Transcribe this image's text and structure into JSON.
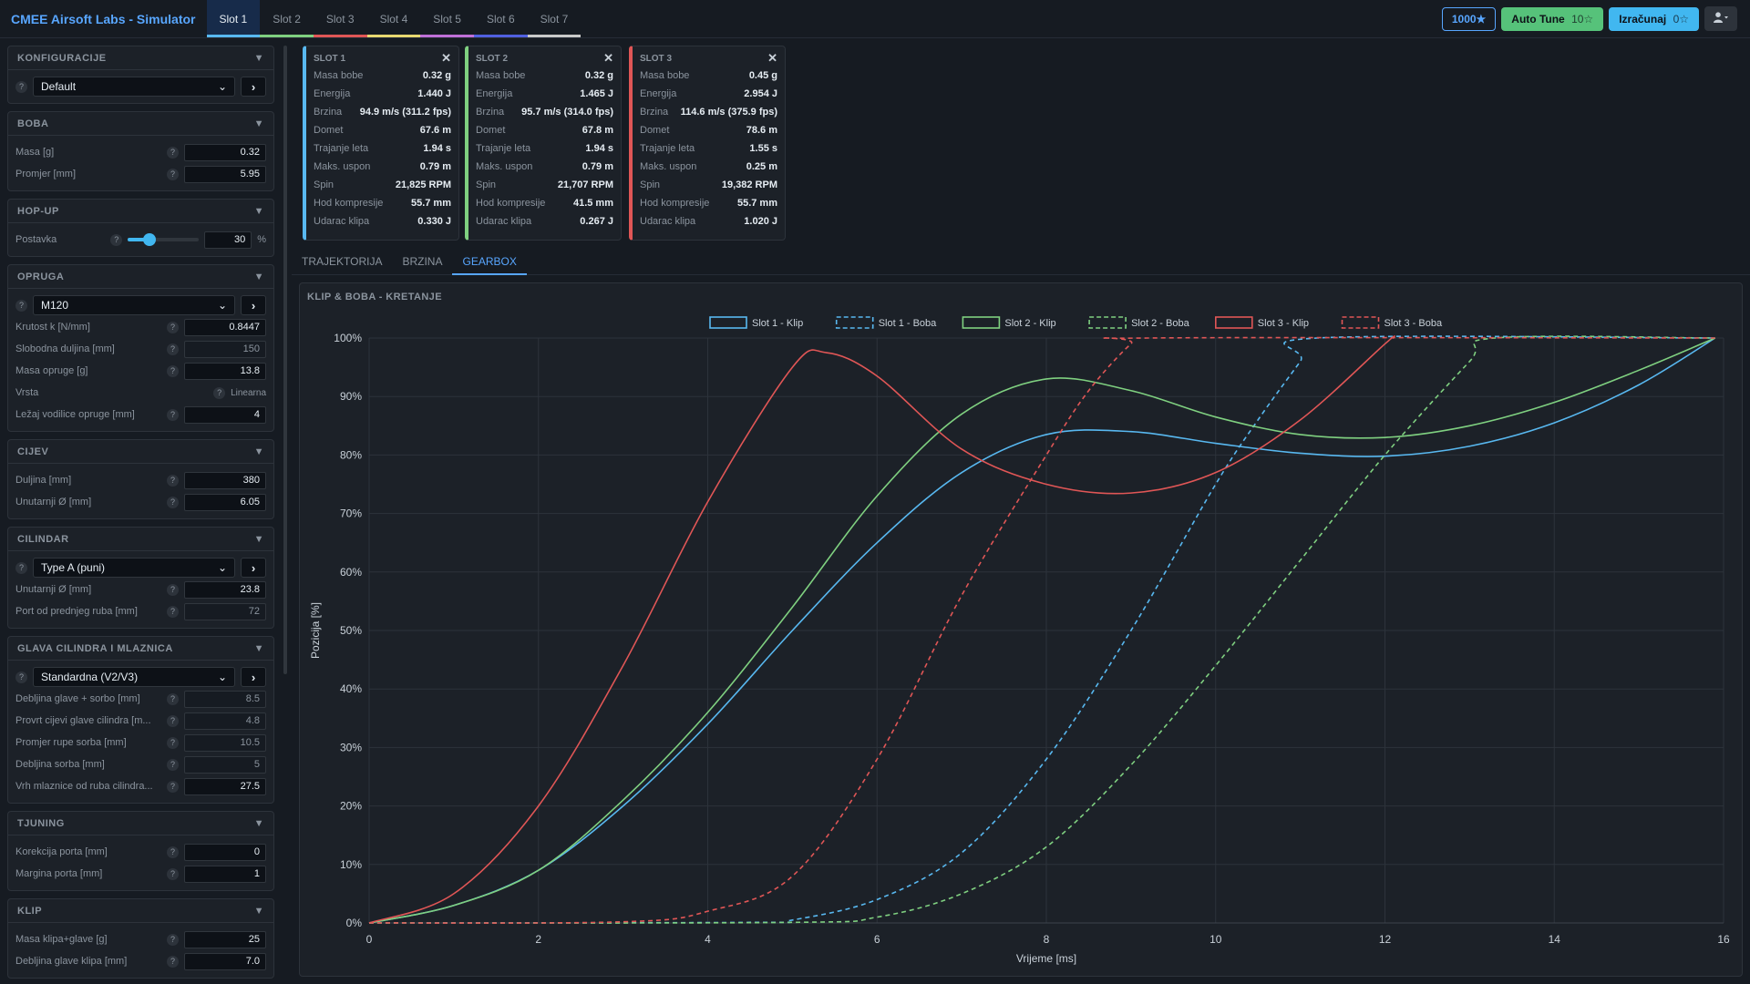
{
  "app": {
    "title": "CMEE Airsoft Labs - Simulator"
  },
  "tabs": [
    {
      "label": "Slot 1",
      "color": "#58b8f0",
      "active": true
    },
    {
      "label": "Slot 2",
      "color": "#7fd080"
    },
    {
      "label": "Slot 3",
      "color": "#e05656"
    },
    {
      "label": "Slot 4",
      "color": "#e8d870"
    },
    {
      "label": "Slot 5",
      "color": "#c070d8"
    },
    {
      "label": "Slot 6",
      "color": "#5060e0"
    },
    {
      "label": "Slot 7",
      "color": "#c9c9c9"
    }
  ],
  "toolbar": {
    "credits": "1000★",
    "auto_tune": "Auto Tune",
    "auto_tune_cost": "10☆",
    "calculate": "Izračunaj",
    "calculate_cost": "0☆",
    "user_icon": "user-icon"
  },
  "sidebar": {
    "konfiguracije": {
      "title": "KONFIGURACIJE",
      "select": "Default"
    },
    "boba": {
      "title": "BOBA",
      "rows": [
        {
          "label": "Masa [g]",
          "value": "0.32"
        },
        {
          "label": "Promjer [mm]",
          "value": "5.95"
        }
      ]
    },
    "hopup": {
      "title": "HOP-UP",
      "label": "Postavka",
      "value": "30",
      "unit": "%",
      "level": 0.3
    },
    "opruga": {
      "title": "OPRUGA",
      "select": "M120",
      "rows": [
        {
          "label": "Krutost k [N/mm]",
          "value": "0.8447"
        },
        {
          "label": "Slobodna duljina [mm]",
          "value": "150"
        },
        {
          "label": "Masa opruge [g]",
          "value": "13.8"
        }
      ],
      "vrsta_label": "Vrsta",
      "vrsta_value": "Linearna",
      "lezaj_label": "Ležaj vodilice opruge [mm]",
      "lezaj_value": "4"
    },
    "cijev": {
      "title": "CIJEV",
      "rows": [
        {
          "label": "Duljina [mm]",
          "value": "380"
        },
        {
          "label": "Unutarnji Ø [mm]",
          "value": "6.05"
        }
      ]
    },
    "cilindar": {
      "title": "CILINDAR",
      "select": "Type A (puni)",
      "rows": [
        {
          "label": "Unutarnji Ø [mm]",
          "value": "23.8"
        },
        {
          "label": "Port od prednjeg ruba [mm]",
          "value": "72"
        }
      ]
    },
    "glava": {
      "title": "GLAVA CILINDRA I MLAZNICA",
      "select": "Standardna (V2/V3)",
      "rows": [
        {
          "label": "Debljina glave + sorbo [mm]",
          "value": "8.5"
        },
        {
          "label": "Provrt cijevi glave cilindra [m...",
          "value": "4.8"
        },
        {
          "label": "Promjer rupe sorba [mm]",
          "value": "10.5"
        },
        {
          "label": "Debljina sorba [mm]",
          "value": "5"
        },
        {
          "label": "Vrh mlaznice od ruba cilindra...",
          "value": "27.5"
        }
      ]
    },
    "tjuning": {
      "title": "TJUNING",
      "rows": [
        {
          "label": "Korekcija porta [mm]",
          "value": "0"
        },
        {
          "label": "Margina porta [mm]",
          "value": "1"
        }
      ]
    },
    "klip": {
      "title": "KLIP",
      "rows": [
        {
          "label": "Masa klipa+glave [g]",
          "value": "25"
        },
        {
          "label": "Debljina glave klipa [mm]",
          "value": "7.0"
        }
      ]
    }
  },
  "cards": [
    {
      "title": "SLOT 1",
      "color": "#58b8f0",
      "rows": [
        {
          "k": "Masa bobe",
          "v": "0.32 g"
        },
        {
          "k": "Energija",
          "v": "1.440 J"
        },
        {
          "k": "Brzina",
          "v": "94.9 m/s (311.2 fps)"
        },
        {
          "k": "Domet",
          "v": "67.6 m"
        },
        {
          "k": "Trajanje leta",
          "v": "1.94 s"
        },
        {
          "k": "Maks. uspon",
          "v": "0.79 m"
        },
        {
          "k": "Spin",
          "v": "21,825 RPM"
        },
        {
          "k": "Hod kompresije",
          "v": "55.7 mm"
        },
        {
          "k": "Udarac klipa",
          "v": "0.330 J"
        }
      ]
    },
    {
      "title": "SLOT 2",
      "color": "#7fd080",
      "rows": [
        {
          "k": "Masa bobe",
          "v": "0.32 g"
        },
        {
          "k": "Energija",
          "v": "1.465 J"
        },
        {
          "k": "Brzina",
          "v": "95.7 m/s (314.0 fps)"
        },
        {
          "k": "Domet",
          "v": "67.8 m"
        },
        {
          "k": "Trajanje leta",
          "v": "1.94 s"
        },
        {
          "k": "Maks. uspon",
          "v": "0.79 m"
        },
        {
          "k": "Spin",
          "v": "21,707 RPM"
        },
        {
          "k": "Hod kompresije",
          "v": "41.5 mm"
        },
        {
          "k": "Udarac klipa",
          "v": "0.267 J"
        }
      ]
    },
    {
      "title": "SLOT 3",
      "color": "#e05656",
      "rows": [
        {
          "k": "Masa bobe",
          "v": "0.45 g"
        },
        {
          "k": "Energija",
          "v": "2.954 J"
        },
        {
          "k": "Brzina",
          "v": "114.6 m/s (375.9 fps)"
        },
        {
          "k": "Domet",
          "v": "78.6 m"
        },
        {
          "k": "Trajanje leta",
          "v": "1.55 s"
        },
        {
          "k": "Maks. uspon",
          "v": "0.25 m"
        },
        {
          "k": "Spin",
          "v": "19,382 RPM"
        },
        {
          "k": "Hod kompresije",
          "v": "55.7 mm"
        },
        {
          "k": "Udarac klipa",
          "v": "1.020 J"
        }
      ]
    }
  ],
  "subtabs": [
    {
      "label": "TRAJEKTORIJA"
    },
    {
      "label": "BRZINA"
    },
    {
      "label": "GEARBOX",
      "active": true
    }
  ],
  "panel_title": "KLIP & BOBA - KRETANJE",
  "chart_data": {
    "type": "line",
    "xlabel": "Vrijeme [ms]",
    "ylabel": "Pozicija [%]",
    "xlim": [
      0,
      16
    ],
    "ylim": [
      0,
      100
    ],
    "xticks": [
      0,
      2,
      4,
      6,
      8,
      10,
      12,
      14,
      16
    ],
    "yticks": [
      0,
      10,
      20,
      30,
      40,
      50,
      60,
      70,
      80,
      90,
      100
    ],
    "ytick_suffix": "%",
    "grid": true,
    "legend_position": "top-center",
    "series": [
      {
        "name": "Slot 1 - Klip",
        "color": "#58b8f0",
        "dashed": false,
        "x": [
          0,
          1,
          2,
          3,
          4,
          5,
          6,
          7,
          8,
          9,
          10,
          11,
          12,
          13,
          14,
          15,
          15.9
        ],
        "y": [
          0,
          3,
          9,
          20,
          34,
          50,
          65,
          77,
          83.5,
          84,
          82,
          80.3,
          79.8,
          81.5,
          85.5,
          92,
          100
        ]
      },
      {
        "name": "Slot 1 - Boba",
        "color": "#58b8f0",
        "dashed": true,
        "x": [
          0,
          4.5,
          5,
          6,
          7,
          8,
          9,
          10,
          10.5,
          11,
          11.2,
          15.9
        ],
        "y": [
          0,
          0.1,
          0.5,
          4,
          12,
          28,
          50,
          75,
          86,
          96,
          100,
          100
        ]
      },
      {
        "name": "Slot 2 - Klip",
        "color": "#7fd080",
        "dashed": false,
        "x": [
          0,
          1,
          2,
          3,
          4,
          5,
          6,
          7,
          8,
          9,
          10,
          11,
          12,
          13,
          14,
          15,
          15.9
        ],
        "y": [
          0,
          3,
          9,
          21,
          36,
          54,
          73,
          87,
          93,
          91,
          86.5,
          83.5,
          83,
          85,
          89,
          94.5,
          100
        ]
      },
      {
        "name": "Slot 2 - Boba",
        "color": "#7fd080",
        "dashed": true,
        "x": [
          0,
          5,
          6,
          7,
          8,
          9,
          10,
          11,
          12,
          13,
          13.3,
          15.9
        ],
        "y": [
          0,
          0.1,
          1,
          5,
          13,
          27,
          44,
          62,
          80,
          96,
          100,
          100
        ]
      },
      {
        "name": "Slot 3 - Klip",
        "color": "#e05656",
        "dashed": false,
        "x": [
          0,
          1,
          2,
          3,
          4,
          5,
          5.4,
          6,
          7,
          8,
          9,
          10,
          11,
          12,
          12.1
        ],
        "y": [
          0,
          5,
          20,
          44,
          72,
          95,
          97.5,
          93.5,
          81,
          75,
          73.5,
          77,
          86,
          99,
          100
        ]
      },
      {
        "name": "Slot 3 - Boba",
        "color": "#e05656",
        "dashed": true,
        "x": [
          0,
          3,
          4,
          5,
          6,
          7,
          8,
          8.5,
          9,
          9.2,
          15.9
        ],
        "y": [
          0,
          0.2,
          2,
          8,
          28,
          56,
          80,
          91,
          99,
          100,
          100
        ]
      }
    ]
  }
}
